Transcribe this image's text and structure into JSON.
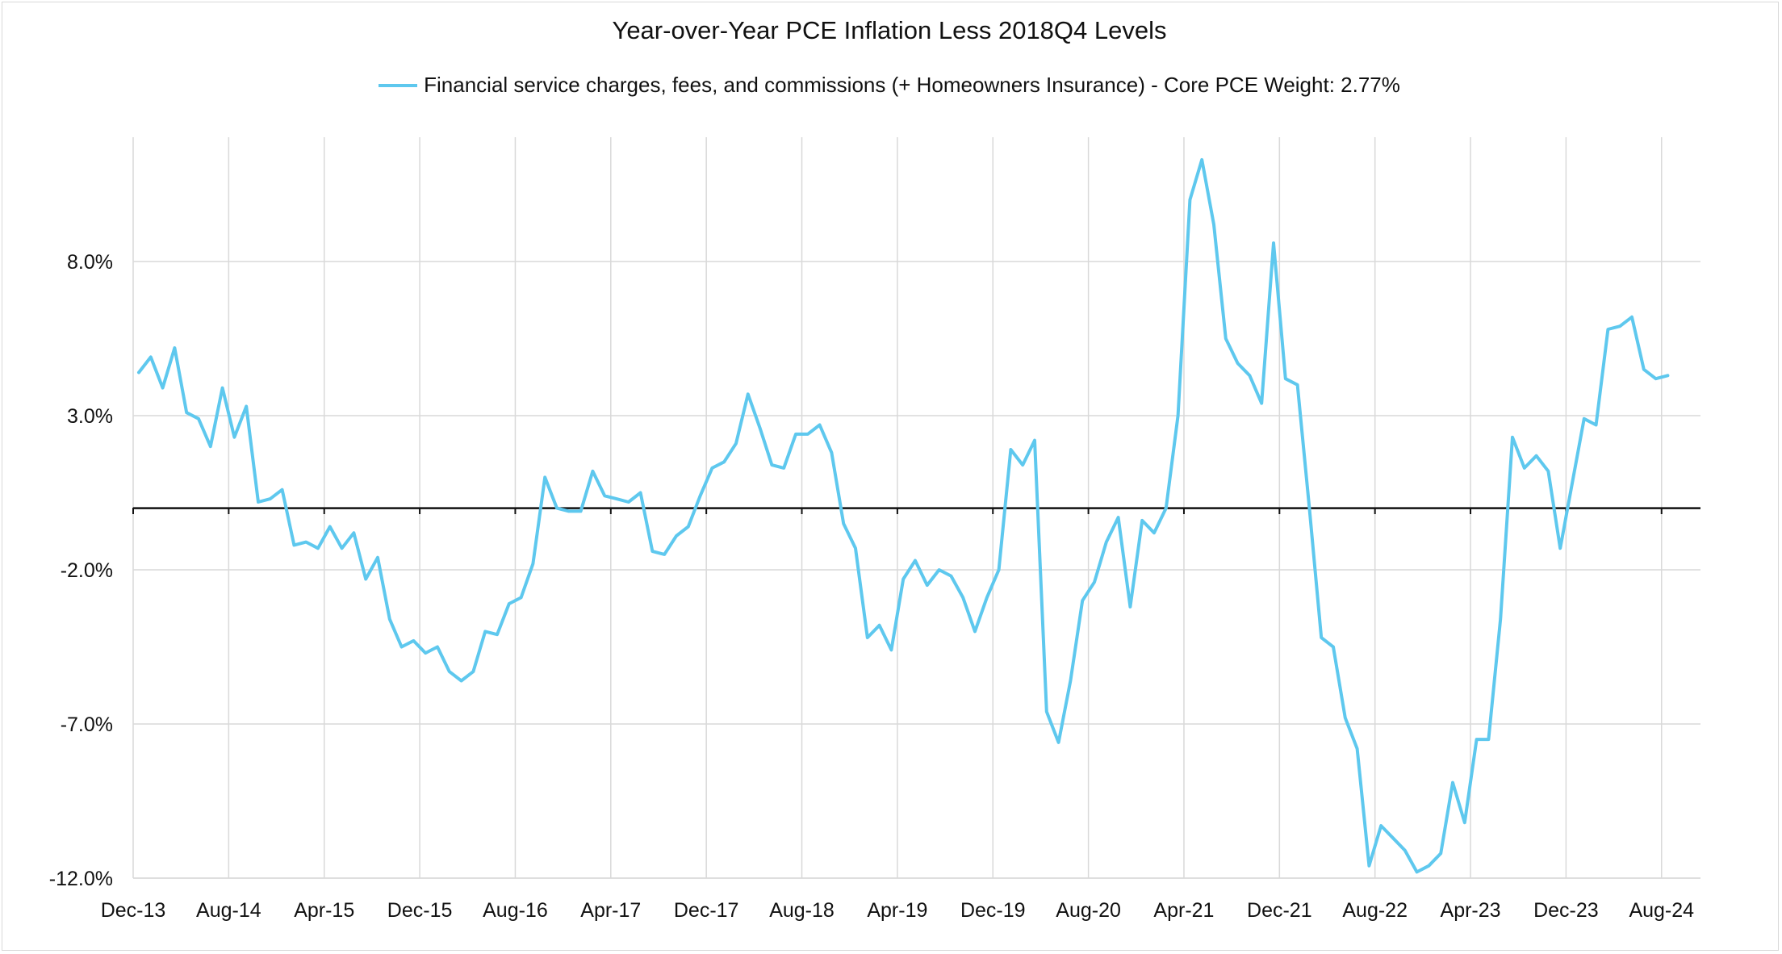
{
  "chart_data": {
    "type": "line",
    "title": "Year-over-Year PCE Inflation Less 2018Q4 Levels",
    "xlabel": "",
    "ylabel": "",
    "ylim": [
      -12,
      12
    ],
    "yticks": [
      8,
      3,
      -2,
      -7,
      -12
    ],
    "ytick_labels": [
      "8.0%",
      "3.0%",
      "-2.0%",
      "-7.0%",
      "-12.0%"
    ],
    "xtick_labels": [
      "Dec-13",
      "Aug-14",
      "Apr-15",
      "Dec-15",
      "Aug-16",
      "Apr-17",
      "Dec-17",
      "Aug-18",
      "Apr-19",
      "Dec-19",
      "Aug-20",
      "Apr-21",
      "Dec-21",
      "Aug-22",
      "Apr-23",
      "Dec-23",
      "Aug-24"
    ],
    "grid": true,
    "legend_position": "top",
    "zero_line": true,
    "series": [
      {
        "name": "Financial service charges, fees, and commissions (+ Homeowners Insurance) - Core PCE Weight: 2.77%",
        "color": "#5ec8ee",
        "values": [
          4.4,
          4.9,
          3.9,
          5.2,
          3.1,
          2.9,
          2.0,
          3.9,
          2.3,
          3.3,
          0.2,
          0.3,
          0.6,
          -1.2,
          -1.1,
          -1.3,
          -0.6,
          -1.3,
          -0.8,
          -2.3,
          -1.6,
          -3.6,
          -4.5,
          -4.3,
          -4.7,
          -4.5,
          -5.3,
          -5.6,
          -5.3,
          -4.0,
          -4.1,
          -3.1,
          -2.9,
          -1.8,
          1.0,
          0.0,
          -0.1,
          -0.1,
          1.2,
          0.4,
          0.3,
          0.2,
          0.5,
          -1.4,
          -1.5,
          -0.9,
          -0.6,
          0.4,
          1.3,
          1.5,
          2.1,
          3.7,
          2.6,
          1.4,
          1.3,
          2.4,
          2.4,
          2.7,
          1.8,
          -0.5,
          -1.3,
          -4.2,
          -3.8,
          -4.6,
          -2.3,
          -1.7,
          -2.5,
          -2.0,
          -2.2,
          -2.9,
          -4.0,
          -2.9,
          -2.0,
          1.9,
          1.4,
          2.2,
          -6.6,
          -7.6,
          -5.6,
          -3.0,
          -2.4,
          -1.1,
          -0.3,
          -3.2,
          -0.4,
          -0.8,
          0.0,
          3.0,
          10.0,
          11.3,
          9.2,
          5.5,
          4.7,
          4.3,
          3.4,
          8.6,
          4.2,
          4.0,
          0.0,
          -4.2,
          -4.5,
          -6.8,
          -7.8,
          -11.6,
          -10.3,
          -10.7,
          -11.1,
          -11.8,
          -11.6,
          -11.2,
          -8.9,
          -10.2,
          -7.5,
          -7.5,
          -3.6,
          2.3,
          1.3,
          1.7,
          1.2,
          -1.3,
          0.8,
          2.9,
          2.7,
          5.8,
          5.9,
          6.2,
          4.5,
          4.2,
          4.3
        ]
      }
    ]
  }
}
